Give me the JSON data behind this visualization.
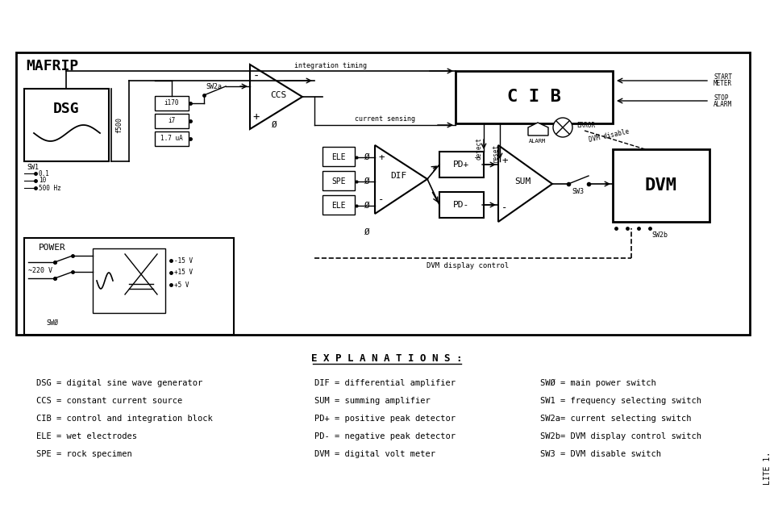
{
  "title": "MAFRIP",
  "bg_color": "#ffffff",
  "text_color": "#000000",
  "explanations_title": "E X P L A N A T I O N S :",
  "explanations_col1": [
    "DSG = digital sine wave generator",
    "CCS = constant current source",
    "CIB = control and integration block",
    "ELE = wet electrodes",
    "SPE = rock specimen"
  ],
  "explanations_col2": [
    "DIF = differential amplifier",
    "SUM = summing amplifier",
    "PD+ = positive peak detector",
    "PD- = negative peak detector",
    "DVM = digital volt meter"
  ],
  "explanations_col3": [
    "SWØ = main power switch",
    "SW1 = frequency selecting switch",
    "SW2a= current selecting switch",
    "SW2b= DVM display control switch",
    "SW3 = DVM disable switch"
  ],
  "lite_label": "LITE 1."
}
